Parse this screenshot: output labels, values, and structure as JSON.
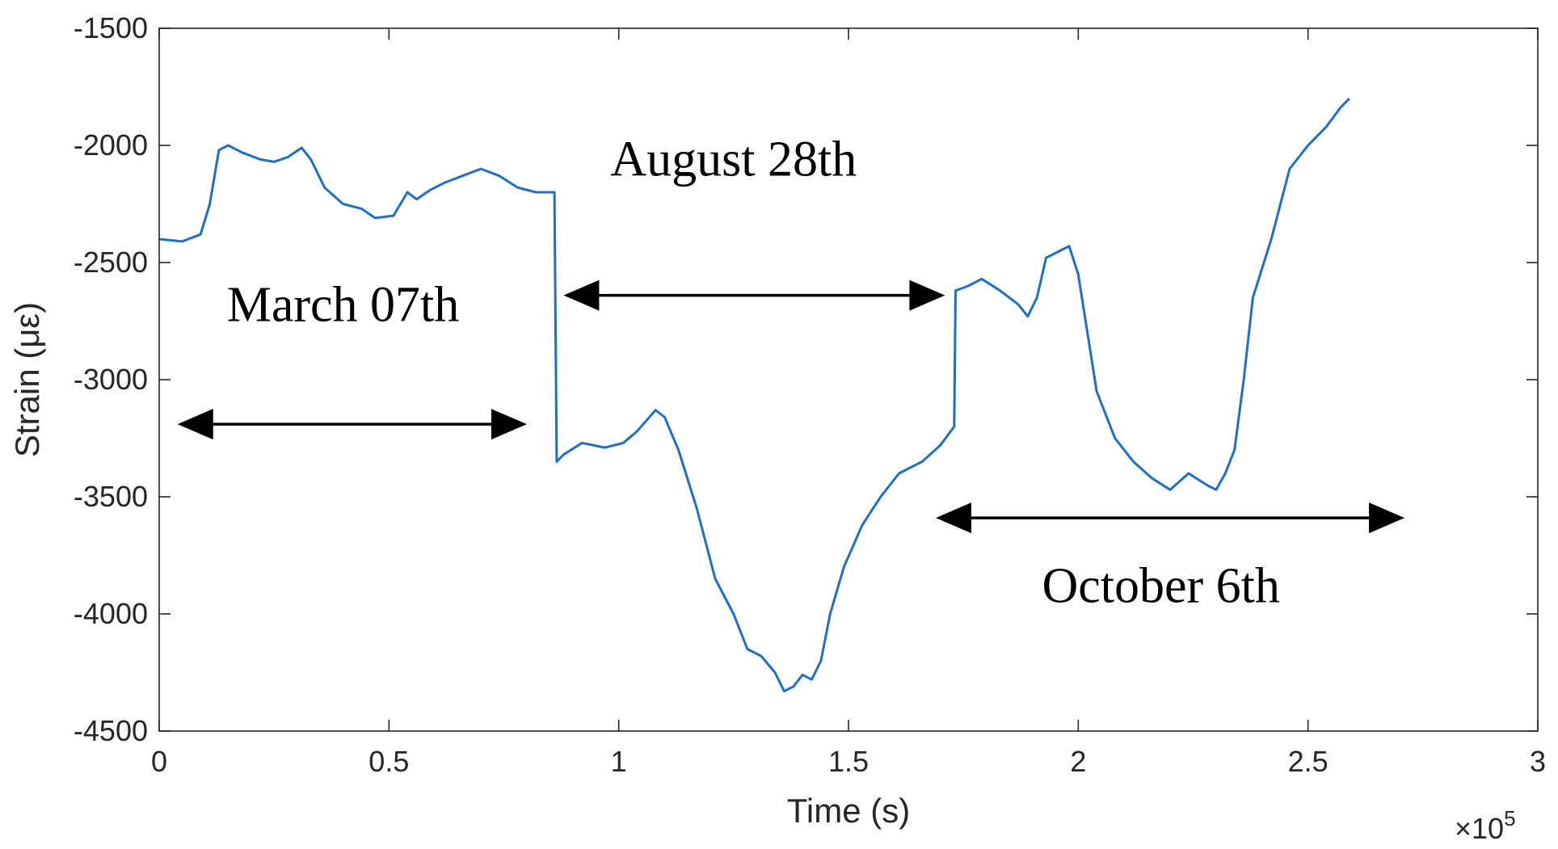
{
  "chart_data": {
    "type": "line",
    "xlabel": "Time (s)",
    "ylabel": "Strain (με)",
    "x_exponent_label": "×10",
    "x_exponent_power": "5",
    "xlim": [
      0,
      300000
    ],
    "ylim": [
      -4500,
      -1500
    ],
    "y_axis_reversed": true,
    "grid": false,
    "x_ticks": [
      0,
      50000,
      100000,
      150000,
      200000,
      250000,
      300000
    ],
    "x_tick_labels": [
      "0",
      "0.5",
      "1",
      "1.5",
      "2",
      "2.5",
      "3"
    ],
    "y_ticks": [
      -1500,
      -2000,
      -2500,
      -3000,
      -3500,
      -4000,
      -4500
    ],
    "y_tick_labels": [
      "-1500",
      "-2000",
      "-2500",
      "-3000",
      "-3500",
      "-4000",
      "-4500"
    ],
    "line_color": "#1f6fc5",
    "series": [
      {
        "points": [
          [
            0,
            -2400
          ],
          [
            5000,
            -2410
          ],
          [
            9000,
            -2380
          ],
          [
            11000,
            -2250
          ],
          [
            13000,
            -2020
          ],
          [
            15000,
            -2000
          ],
          [
            18000,
            -2030
          ],
          [
            22000,
            -2060
          ],
          [
            25000,
            -2070
          ],
          [
            28000,
            -2050
          ],
          [
            31000,
            -2010
          ],
          [
            33000,
            -2060
          ],
          [
            36000,
            -2180
          ],
          [
            40000,
            -2250
          ],
          [
            44000,
            -2270
          ],
          [
            47000,
            -2310
          ],
          [
            51000,
            -2300
          ],
          [
            54000,
            -2200
          ],
          [
            56000,
            -2230
          ],
          [
            59000,
            -2190
          ],
          [
            62000,
            -2160
          ],
          [
            66000,
            -2130
          ],
          [
            70000,
            -2100
          ],
          [
            74000,
            -2130
          ],
          [
            78000,
            -2180
          ],
          [
            82000,
            -2200
          ],
          [
            86000,
            -2200
          ],
          [
            86500,
            -3350
          ],
          [
            88000,
            -3320
          ],
          [
            92000,
            -3270
          ],
          [
            97000,
            -3290
          ],
          [
            101000,
            -3270
          ],
          [
            104000,
            -3220
          ],
          [
            108000,
            -3130
          ],
          [
            110000,
            -3160
          ],
          [
            113000,
            -3300
          ],
          [
            117000,
            -3550
          ],
          [
            121000,
            -3850
          ],
          [
            125000,
            -4000
          ],
          [
            128000,
            -4150
          ],
          [
            131000,
            -4180
          ],
          [
            134000,
            -4250
          ],
          [
            136000,
            -4330
          ],
          [
            138000,
            -4310
          ],
          [
            140000,
            -4260
          ],
          [
            142000,
            -4280
          ],
          [
            144000,
            -4200
          ],
          [
            146000,
            -4000
          ],
          [
            149000,
            -3800
          ],
          [
            153000,
            -3620
          ],
          [
            157000,
            -3500
          ],
          [
            161000,
            -3400
          ],
          [
            166000,
            -3350
          ],
          [
            170000,
            -3280
          ],
          [
            173000,
            -3200
          ],
          [
            173300,
            -2620
          ],
          [
            176000,
            -2600
          ],
          [
            179000,
            -2570
          ],
          [
            183000,
            -2620
          ],
          [
            187000,
            -2680
          ],
          [
            189000,
            -2730
          ],
          [
            191000,
            -2650
          ],
          [
            193000,
            -2480
          ],
          [
            196000,
            -2450
          ],
          [
            198000,
            -2430
          ],
          [
            200000,
            -2550
          ],
          [
            202000,
            -2800
          ],
          [
            204000,
            -3050
          ],
          [
            208000,
            -3250
          ],
          [
            212000,
            -3350
          ],
          [
            216000,
            -3420
          ],
          [
            220000,
            -3470
          ],
          [
            224000,
            -3400
          ],
          [
            228000,
            -3450
          ],
          [
            230000,
            -3470
          ],
          [
            232000,
            -3400
          ],
          [
            234000,
            -3300
          ],
          [
            236000,
            -3000
          ],
          [
            238000,
            -2650
          ],
          [
            242000,
            -2400
          ],
          [
            246000,
            -2100
          ],
          [
            250000,
            -2000
          ],
          [
            254000,
            -1920
          ],
          [
            257000,
            -1840
          ],
          [
            259000,
            -1800
          ]
        ]
      }
    ],
    "annotations": [
      {
        "text": "March 07th",
        "x": 40000,
        "y": -2750
      },
      {
        "text": "August 28th",
        "x": 125000,
        "y": -2130
      },
      {
        "text": "October 6th",
        "x": 218000,
        "y": -3950
      }
    ],
    "double_arrows": [
      {
        "x1": 4000,
        "x2": 80000,
        "y": -3190
      },
      {
        "x1": 88000,
        "x2": 171000,
        "y": -2640
      },
      {
        "x1": 169000,
        "x2": 271000,
        "y": -3590
      }
    ]
  }
}
